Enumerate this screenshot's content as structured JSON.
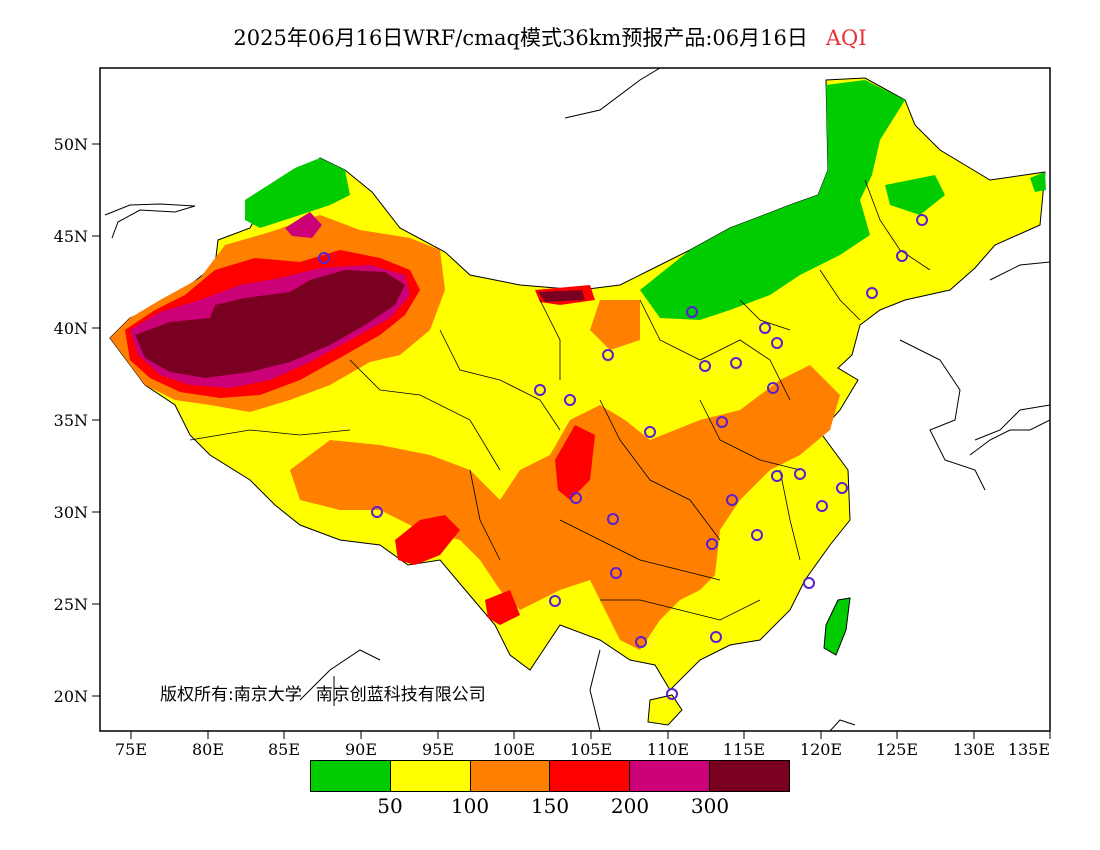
{
  "header": {
    "title": "2025年06月16日WRF/cmaq模式36km预报产品:06月16日",
    "variable": "AQI",
    "variable_color": "#e8303a"
  },
  "axes": {
    "y_labels": [
      "50N",
      "45N",
      "40N",
      "35N",
      "30N",
      "25N",
      "20N"
    ],
    "x_labels": [
      "75E",
      "80E",
      "85E",
      "90E",
      "95E",
      "100E",
      "105E",
      "110E",
      "115E",
      "120E",
      "125E",
      "130E",
      "135E"
    ]
  },
  "copyright": {
    "left": "版权所有:南京大学",
    "right": "南京创蓝科技有限公司"
  },
  "legend": {
    "colors": [
      "#00cc00",
      "#ffff00",
      "#ff7f00",
      "#ff0000",
      "#cc0077",
      "#7a0022"
    ],
    "labels": [
      "50",
      "100",
      "150",
      "200",
      "300"
    ]
  }
}
